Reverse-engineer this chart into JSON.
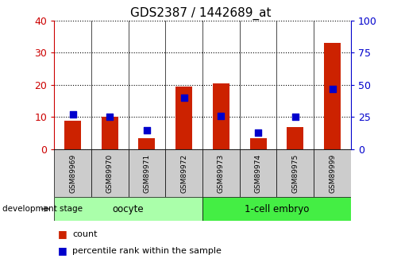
{
  "title": "GDS2387 / 1442689_at",
  "samples": [
    "GSM89969",
    "GSM89970",
    "GSM89971",
    "GSM89972",
    "GSM89973",
    "GSM89974",
    "GSM89975",
    "GSM89999"
  ],
  "counts": [
    9,
    10,
    3.5,
    19.5,
    20.5,
    3.5,
    7,
    33
  ],
  "percentiles": [
    27,
    25,
    15,
    40,
    26,
    13,
    25,
    47
  ],
  "group_labels": [
    "oocyte",
    "1-cell embryo"
  ],
  "group_colors": [
    "#aaffaa",
    "#44ee44"
  ],
  "group_ranges": [
    [
      0,
      3
    ],
    [
      4,
      7
    ]
  ],
  "left_ylim": [
    0,
    40
  ],
  "right_ylim": [
    0,
    100
  ],
  "left_yticks": [
    0,
    10,
    20,
    30,
    40
  ],
  "right_yticks": [
    0,
    25,
    50,
    75,
    100
  ],
  "left_tick_color": "#cc0000",
  "right_tick_color": "#0000cc",
  "bar_color": "#cc2200",
  "dot_color": "#0000cc",
  "bg_color": "#ffffff",
  "label_box_color": "#cccccc",
  "bar_width": 0.45,
  "dot_size": 30,
  "title_fontsize": 11,
  "tick_fontsize": 9,
  "sample_fontsize": 6.5,
  "stage_fontsize": 8.5,
  "legend_fontsize": 8
}
